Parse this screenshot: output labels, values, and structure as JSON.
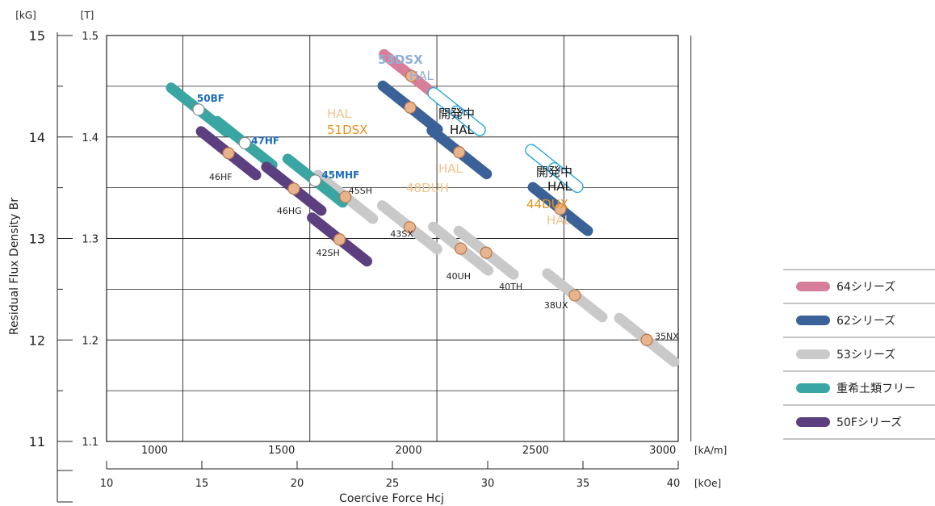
{
  "chart_data": {
    "type": "scatter",
    "title": "",
    "xlabel": "Coercive Force Hcj",
    "ylabel": "Residual Flux Density Br",
    "x_unit_primary": "[kA/m]",
    "x_unit_secondary": "[kOe]",
    "y_unit_primary": "[T]",
    "y_unit_secondary": "[kG]",
    "xlim_kAm": [
      700,
      2950
    ],
    "ylim_T": [
      1.1,
      1.5
    ],
    "x_ticks_kAm": [
      "1000",
      "1500",
      "2000",
      "2500",
      "3000"
    ],
    "x_ticks_kOe": [
      "10",
      "15",
      "20",
      "25",
      "30",
      "35",
      "40"
    ],
    "y_ticks_T": [
      "1.1",
      "1.2",
      "1.3",
      "1.4",
      "1.5"
    ],
    "y_ticks_kG": [
      "11",
      "12",
      "13",
      "14",
      "15"
    ],
    "grid": true,
    "legend_position": "right",
    "colors": {
      "s64": "#d77f9a",
      "s62": "#3a6298",
      "s53": "#c9c9c9",
      "nohre": "#3aa6a3",
      "s50f": "#5b3f7f",
      "point": "#e8b48d",
      "point_edge": "#b8774a",
      "blue_text": "#1a6bc0",
      "orange_text": "#e8901c",
      "light_orange": "#f1c48c",
      "light_blue": "#8fb0d8",
      "dev_blue": "#1ea0dc"
    },
    "series": [
      {
        "name": "64シリーズ",
        "key": "s64",
        "points": [
          {
            "label": "",
            "x": 1900,
            "y": 1.46
          }
        ]
      },
      {
        "name": "62シリーズ",
        "key": "s62",
        "points": [
          {
            "label": "",
            "x": 1895,
            "y": 1.429
          },
          {
            "label": "",
            "x": 2088,
            "y": 1.385
          },
          {
            "label": "",
            "x": 2486,
            "y": 1.329
          }
        ]
      },
      {
        "name": "53シリーズ",
        "key": "s53",
        "points": [
          {
            "label": "45SH",
            "x": 1640,
            "y": 1.341
          },
          {
            "label": "43SX",
            "x": 1893,
            "y": 1.311
          },
          {
            "label": "40UH",
            "x": 2094,
            "y": 1.29
          },
          {
            "label": "40TH",
            "x": 2194,
            "y": 1.286
          },
          {
            "label": "38UX",
            "x": 2543,
            "y": 1.244
          },
          {
            "label": "35NX",
            "x": 2826,
            "y": 1.2
          }
        ]
      },
      {
        "name": "重希土類フリー",
        "key": "nohre",
        "points": [
          {
            "label": "50BF",
            "x": 1062,
            "y": 1.427
          },
          {
            "label": "47HF",
            "x": 1244,
            "y": 1.394
          },
          {
            "label": "45MHF",
            "x": 1521,
            "y": 1.357
          }
        ]
      },
      {
        "name": "50Fシリーズ",
        "key": "s50f",
        "points": [
          {
            "label": "46HF",
            "x": 1180,
            "y": 1.384
          },
          {
            "label": "46HG",
            "x": 1437,
            "y": 1.349
          },
          {
            "label": "42SH",
            "x": 1617,
            "y": 1.299
          }
        ]
      }
    ],
    "dev_points": [
      {
        "x": 2078,
        "y": 1.425
      },
      {
        "x": 2462,
        "y": 1.369
      }
    ],
    "annotations": {
      "g53dsx": "53DSX",
      "g53dsx_hal": "HAL",
      "g51dsx_hal": "HAL",
      "g51dsx": "51DSX",
      "dev1_a": "開発中",
      "dev1_b": "HAL",
      "g48duh_hal": "HAL",
      "g48duh": "48DUH",
      "dev2_a": "開発中",
      "dev2_b": "HAL",
      "g44dux": "44DUX",
      "g44dux_hal": "HAL"
    }
  }
}
